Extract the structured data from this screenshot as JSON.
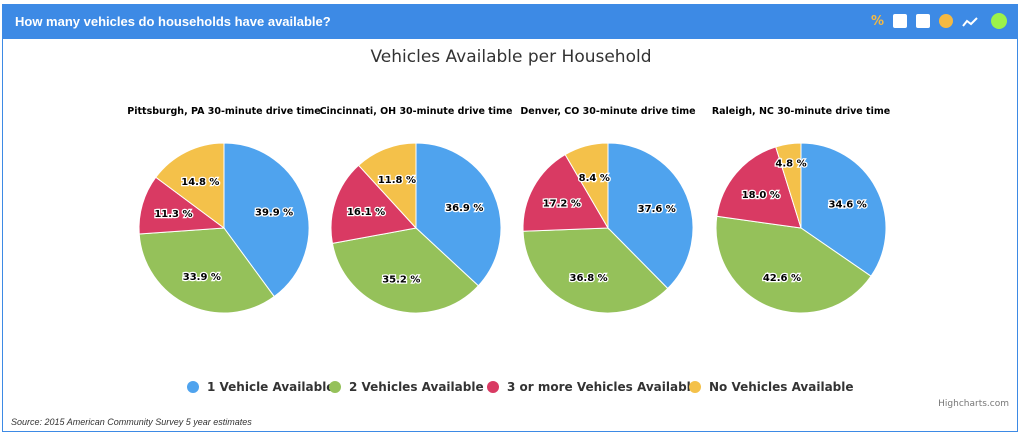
{
  "header": {
    "title": "How many vehicles do households have available?",
    "tools": [
      "percent-icon",
      "table-icon",
      "bar-chart-icon",
      "pie-chart-icon",
      "line-chart-icon",
      "status-dot"
    ]
  },
  "colors": {
    "header": "#3d8ae5",
    "series": [
      "#4fa3ee",
      "#95c15a",
      "#d93a63",
      "#f4c14a"
    ]
  },
  "chart_data": {
    "type": "pie",
    "title": "Vehicles Available per Household",
    "legend": [
      "1 Vehicle Available",
      "2 Vehicles Available",
      "3 or more Vehicles Available",
      "No Vehicles Available"
    ],
    "legend_position": "bottom",
    "pies": [
      {
        "title": "Pittsburgh, PA 30-minute drive time",
        "values": [
          39.9,
          33.9,
          11.3,
          14.8
        ]
      },
      {
        "title": "Cincinnati, OH 30-minute drive time",
        "values": [
          36.9,
          35.2,
          16.1,
          11.8
        ]
      },
      {
        "title": "Denver, CO 30-minute drive time",
        "values": [
          37.6,
          36.8,
          17.2,
          8.4
        ]
      },
      {
        "title": "Raleigh, NC 30-minute drive time",
        "values": [
          34.6,
          42.6,
          18.0,
          4.8
        ]
      }
    ]
  },
  "source": "Source: 2015 American Community Survey 5 year estimates",
  "credits": "Highcharts.com"
}
